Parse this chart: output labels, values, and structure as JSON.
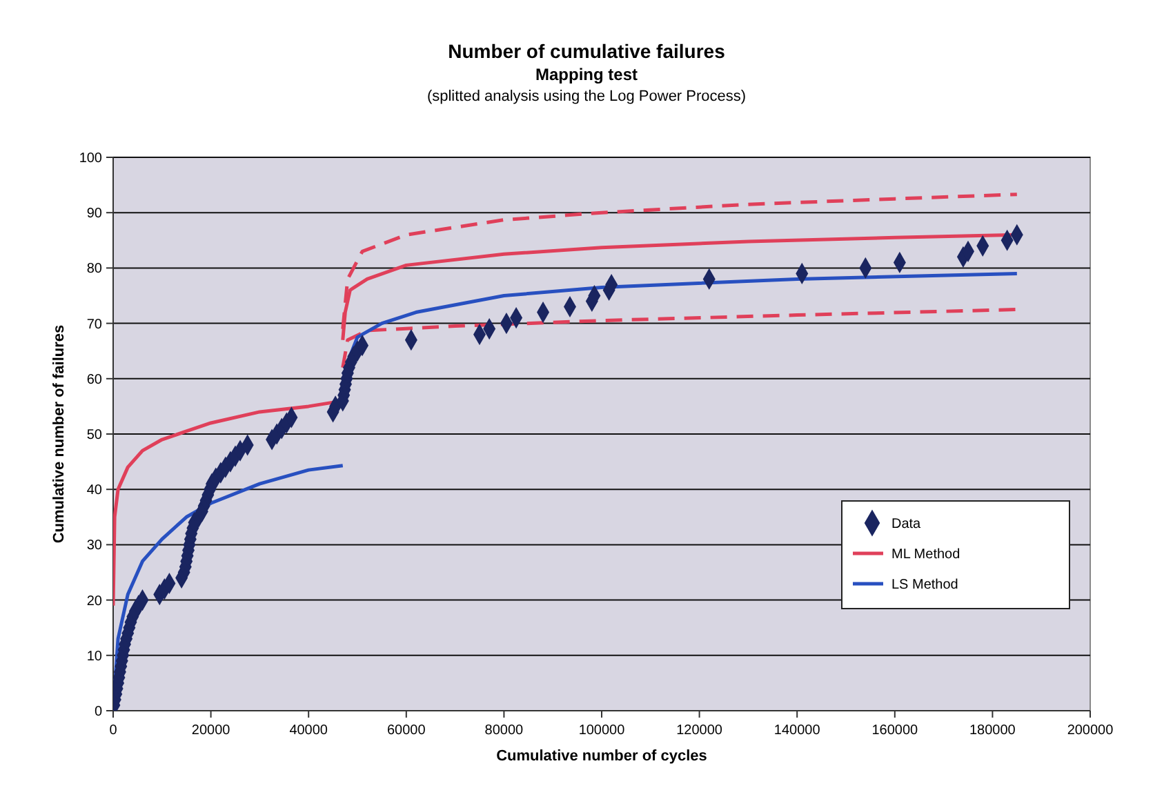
{
  "chart_data": {
    "type": "scatter",
    "title": "Number of cumulative failures",
    "subtitle": "Mapping test",
    "annotations": [
      "(splitted analysis using the Log Power Process)"
    ],
    "xlabel": "Cumulative number of cycles",
    "ylabel": "Cumulative number of failures",
    "xlim": [
      0,
      200000
    ],
    "ylim": [
      0,
      100
    ],
    "xticks": [
      0,
      20000,
      40000,
      60000,
      80000,
      100000,
      120000,
      140000,
      160000,
      180000,
      200000
    ],
    "yticks": [
      0,
      10,
      20,
      30,
      40,
      50,
      60,
      70,
      80,
      90,
      100
    ],
    "grid": "y",
    "legend": "right",
    "series": [
      {
        "name": "Data",
        "marker": "diamond",
        "color": "#1a2560",
        "x": [
          200,
          400,
          600,
          800,
          1000,
          1200,
          1400,
          1600,
          1800,
          2000,
          2200,
          2400,
          2700,
          3000,
          3300,
          3600,
          4000,
          4500,
          5200,
          6000,
          9500,
          10500,
          11500,
          14000,
          14500,
          14800,
          15000,
          15200,
          15400,
          15600,
          15800,
          16000,
          16300,
          16600,
          17500,
          18200,
          18600,
          19000,
          19400,
          19800,
          20200,
          21000,
          22000,
          23000,
          24000,
          25000,
          26000,
          27500,
          32500,
          33500,
          34500,
          35500,
          36500,
          45000,
          45500,
          47000,
          47200,
          47400,
          47600,
          47800,
          48000,
          48300,
          48700,
          49200,
          50000,
          51000,
          61000,
          75000,
          77000,
          80500,
          82500,
          88000,
          93500,
          98000,
          98500,
          101500,
          102000,
          122000,
          141000,
          154000,
          161000,
          174000,
          175000,
          178000,
          183000,
          185000
        ],
        "values": [
          1,
          2,
          3,
          4,
          5,
          6,
          7,
          8,
          9,
          10,
          11,
          12,
          13,
          14,
          15,
          16,
          17,
          18,
          19,
          20,
          21,
          22,
          23,
          24,
          25,
          26,
          27,
          28,
          29,
          30,
          31,
          32,
          33,
          34,
          35,
          36,
          37,
          38,
          39,
          40,
          41,
          42,
          43,
          44,
          45,
          46,
          47,
          48,
          49,
          50,
          51,
          52,
          53,
          54,
          55,
          56,
          57,
          58,
          59,
          60,
          61,
          62,
          63,
          64,
          65,
          66,
          67,
          68,
          69,
          70,
          71,
          72,
          73,
          74,
          75,
          76,
          77,
          78,
          79,
          80,
          81,
          82,
          83,
          84,
          85,
          86
        ]
      },
      {
        "name": "ML Method",
        "type": "line",
        "line_style": "solid",
        "color": "#e0405a",
        "x": [
          0,
          300,
          1000,
          3000,
          6000,
          10000,
          15000,
          20000,
          30000,
          40000,
          47000
        ],
        "values": [
          19,
          35,
          40,
          44,
          47,
          49,
          50.5,
          52,
          54,
          55,
          56
        ]
      },
      {
        "type": "line",
        "line_style": "solid",
        "color": "#e0405a",
        "x": [
          47000,
          47500,
          48500,
          52000,
          60000,
          80000,
          100000,
          130000,
          160000,
          185000
        ],
        "values": [
          67,
          72,
          76,
          78,
          80.5,
          82.5,
          83.7,
          84.8,
          85.5,
          86
        ]
      },
      {
        "type": "line",
        "line_style": "dashed",
        "color": "#e0405a",
        "x": [
          47000,
          48000,
          51000,
          60000,
          80000,
          100000,
          130000,
          160000,
          185000
        ],
        "values": [
          69,
          78,
          83,
          86,
          88.7,
          90,
          91.5,
          92.5,
          93.3
        ]
      },
      {
        "type": "line",
        "line_style": "dashed",
        "color": "#e0405a",
        "x": [
          47000,
          48000,
          52000,
          70000,
          100000,
          140000,
          185000
        ],
        "values": [
          62,
          67,
          68.7,
          69.5,
          70.5,
          71.5,
          72.5
        ]
      },
      {
        "name": "LS Method",
        "type": "line",
        "line_style": "solid",
        "color": "#2850c0",
        "x": [
          0,
          1000,
          3000,
          6000,
          10000,
          15000,
          20000,
          30000,
          40000,
          47000
        ],
        "values": [
          0,
          13,
          21,
          27,
          31,
          35,
          37.5,
          41,
          43.5,
          44.3
        ]
      },
      {
        "type": "line",
        "line_style": "solid",
        "color": "#2850c0",
        "x": [
          47000,
          48000,
          50000,
          55000,
          62000,
          80000,
          100000,
          140000,
          185000
        ],
        "values": [
          56,
          63,
          67.5,
          70,
          72,
          75,
          76.5,
          78,
          79
        ]
      }
    ]
  }
}
